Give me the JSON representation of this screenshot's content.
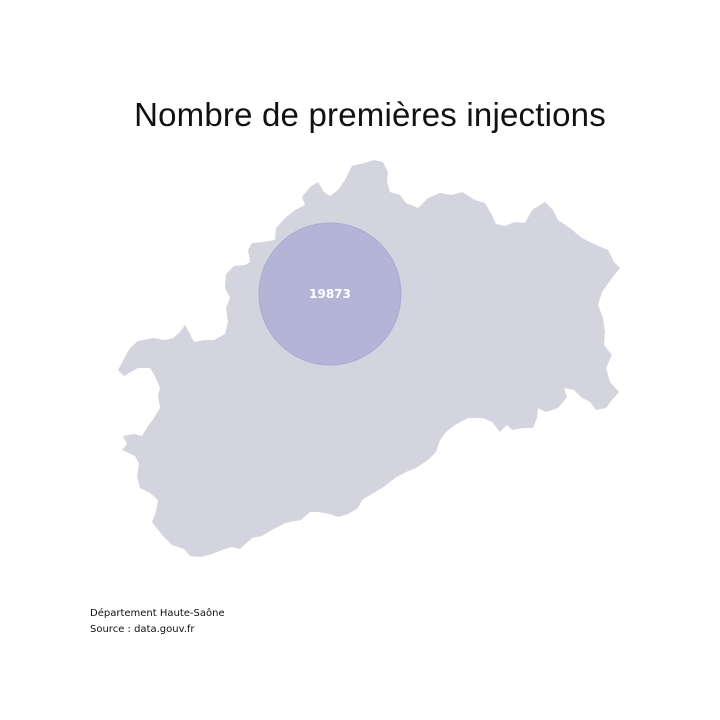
{
  "title": "Nombre de premières injections",
  "map": {
    "region_color": "#d4d4df",
    "bubble_color": "#a9a9d4",
    "bubble_label_color": "#ffffff",
    "bubble_value": "19873"
  },
  "footer": {
    "department": "Département Haute-Saône",
    "source": "Source : data.gouv.fr"
  }
}
